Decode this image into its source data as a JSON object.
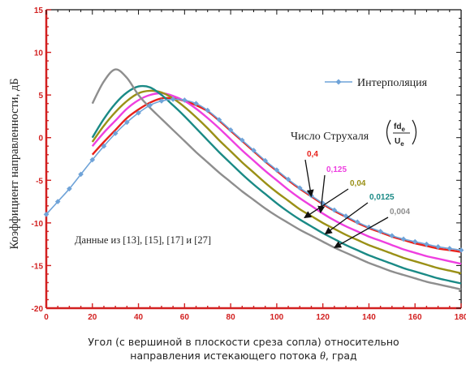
{
  "chart_data": {
    "type": "line",
    "ylabel": "Коэффициент направленности, дБ",
    "xlabel_line1": "Угол (с вершиной в плоскости среза сопла) относительно",
    "xlabel_line2_prefix": "направления истекающего потока ",
    "xlabel_symbol": "θ",
    "xlabel_line2_suffix": ", град",
    "xlim": [
      0,
      180
    ],
    "ylim": [
      -20,
      15
    ],
    "xticks": [
      0,
      20,
      40,
      60,
      80,
      100,
      120,
      140,
      160,
      180
    ],
    "yticks": [
      -20,
      -15,
      -10,
      -5,
      0,
      5,
      10,
      15
    ],
    "grid": false,
    "legend_position": "top-right",
    "legend_entry": "Интерполяция",
    "strouhal_label": "Число Струхаля",
    "strouhal_numerator": "fd",
    "strouhal_denominator": "U",
    "strouhal_subscript": "e",
    "data_note": "Данные из [13], [15], [17] и [27]",
    "series": [
      {
        "name": "Интерполяция",
        "color": "#6fa3d8",
        "marker": "diamond",
        "x": [
          0,
          5,
          10,
          15,
          20,
          25,
          30,
          35,
          40,
          45,
          50,
          55,
          60,
          65,
          70,
          75,
          80,
          85,
          90,
          95,
          100,
          105,
          110,
          115,
          120,
          125,
          130,
          135,
          140,
          145,
          150,
          155,
          160,
          165,
          170,
          175,
          180
        ],
        "y": [
          -9.0,
          -7.5,
          -6.0,
          -4.3,
          -2.6,
          -1.0,
          0.5,
          1.8,
          2.9,
          3.8,
          4.3,
          4.5,
          4.4,
          4.0,
          3.2,
          2.1,
          0.9,
          -0.3,
          -1.5,
          -2.7,
          -3.8,
          -4.9,
          -5.9,
          -6.8,
          -7.7,
          -8.5,
          -9.2,
          -9.9,
          -10.5,
          -11.0,
          -11.5,
          -11.9,
          -12.2,
          -12.5,
          -12.8,
          -13.0,
          -13.2
        ]
      },
      {
        "name": "0,4",
        "color": "#e8221c",
        "x": [
          20,
          25,
          30,
          35,
          40,
          45,
          50,
          55,
          60,
          65,
          70,
          75,
          80,
          85,
          90,
          95,
          100,
          105,
          110,
          115,
          120,
          125,
          130,
          135,
          140,
          145,
          150,
          155,
          160,
          165,
          170,
          175,
          180
        ],
        "y": [
          -2.0,
          -0.5,
          0.9,
          2.3,
          3.3,
          4.1,
          4.6,
          4.6,
          4.3,
          3.8,
          3.1,
          2.0,
          0.8,
          -0.4,
          -1.6,
          -2.8,
          -3.9,
          -5.0,
          -6.0,
          -6.9,
          -7.8,
          -8.6,
          -9.3,
          -10.0,
          -10.6,
          -11.1,
          -11.6,
          -12.0,
          -12.4,
          -12.7,
          -13.0,
          -13.2,
          -13.4
        ]
      },
      {
        "name": "0,125",
        "color": "#ee3fe0",
        "x": [
          20,
          25,
          30,
          35,
          40,
          45,
          50,
          55,
          60,
          65,
          70,
          75,
          80,
          85,
          90,
          95,
          100,
          105,
          110,
          115,
          120,
          125,
          130,
          135,
          140,
          145,
          150,
          155,
          160,
          165,
          170,
          175,
          180
        ],
        "y": [
          -1.0,
          0.6,
          2.0,
          3.4,
          4.4,
          5.0,
          5.2,
          4.9,
          4.3,
          3.4,
          2.3,
          1.1,
          -0.2,
          -1.5,
          -2.7,
          -3.9,
          -5.0,
          -6.1,
          -7.1,
          -8.0,
          -8.9,
          -9.7,
          -10.4,
          -11.0,
          -11.6,
          -12.1,
          -12.6,
          -13.1,
          -13.5,
          -13.9,
          -14.2,
          -14.5,
          -14.8
        ]
      },
      {
        "name": "0,04",
        "color": "#9a9016",
        "x": [
          20,
          25,
          30,
          35,
          40,
          45,
          50,
          55,
          60,
          65,
          70,
          75,
          80,
          85,
          90,
          95,
          100,
          105,
          110,
          115,
          120,
          125,
          130,
          135,
          140,
          145,
          150,
          155,
          160,
          165,
          170,
          175,
          180
        ],
        "y": [
          -0.5,
          1.4,
          3.0,
          4.3,
          5.2,
          5.5,
          5.3,
          4.6,
          3.6,
          2.4,
          1.1,
          -0.3,
          -1.6,
          -2.9,
          -4.1,
          -5.3,
          -6.4,
          -7.4,
          -8.4,
          -9.2,
          -10.0,
          -10.7,
          -11.4,
          -12.0,
          -12.6,
          -13.1,
          -13.6,
          -14.1,
          -14.5,
          -14.9,
          -15.3,
          -15.6,
          -15.9
        ]
      },
      {
        "name": "0,0125",
        "color": "#1a8a86",
        "x": [
          20,
          25,
          30,
          35,
          40,
          45,
          50,
          55,
          60,
          65,
          70,
          75,
          80,
          85,
          90,
          95,
          100,
          105,
          110,
          115,
          120,
          125,
          130,
          135,
          140,
          145,
          150,
          155,
          160,
          165,
          170,
          175,
          180
        ],
        "y": [
          0.0,
          2.2,
          4.0,
          5.3,
          6.0,
          5.9,
          5.0,
          3.8,
          2.5,
          1.1,
          -0.3,
          -1.7,
          -3.0,
          -4.3,
          -5.5,
          -6.6,
          -7.7,
          -8.7,
          -9.6,
          -10.4,
          -11.2,
          -11.9,
          -12.6,
          -13.2,
          -13.8,
          -14.3,
          -14.8,
          -15.3,
          -15.7,
          -16.1,
          -16.5,
          -16.8,
          -17.1
        ]
      },
      {
        "name": "0,004",
        "color": "#8e8e8e",
        "x": [
          20,
          25,
          30,
          35,
          40,
          45,
          50,
          55,
          60,
          65,
          70,
          75,
          80,
          85,
          90,
          95,
          100,
          105,
          110,
          115,
          120,
          125,
          130,
          135,
          140,
          145,
          150,
          155,
          160,
          165,
          170,
          175,
          180
        ],
        "y": [
          4.0,
          6.6,
          8.0,
          7.0,
          5.0,
          3.5,
          2.2,
          0.9,
          -0.4,
          -1.7,
          -2.9,
          -4.1,
          -5.2,
          -6.3,
          -7.3,
          -8.3,
          -9.2,
          -10.0,
          -10.8,
          -11.5,
          -12.2,
          -12.9,
          -13.5,
          -14.1,
          -14.7,
          -15.2,
          -15.7,
          -16.1,
          -16.5,
          -16.9,
          -17.2,
          -17.5,
          -17.8
        ]
      }
    ],
    "annotations": [
      {
        "text": "0,4",
        "color": "#e8221c",
        "target": [
          115,
          -6.9
        ]
      },
      {
        "text": "0,125",
        "color": "#ee3fe0",
        "target": [
          119,
          -8.8
        ]
      },
      {
        "text": "0,04",
        "color": "#9a9016",
        "target": [
          112,
          -9.4
        ]
      },
      {
        "text": "0,0125",
        "color": "#1a8a86",
        "target": [
          121,
          -11.3
        ]
      },
      {
        "text": "0,004",
        "color": "#8e8e8e",
        "target": [
          125,
          -12.9
        ]
      }
    ]
  }
}
